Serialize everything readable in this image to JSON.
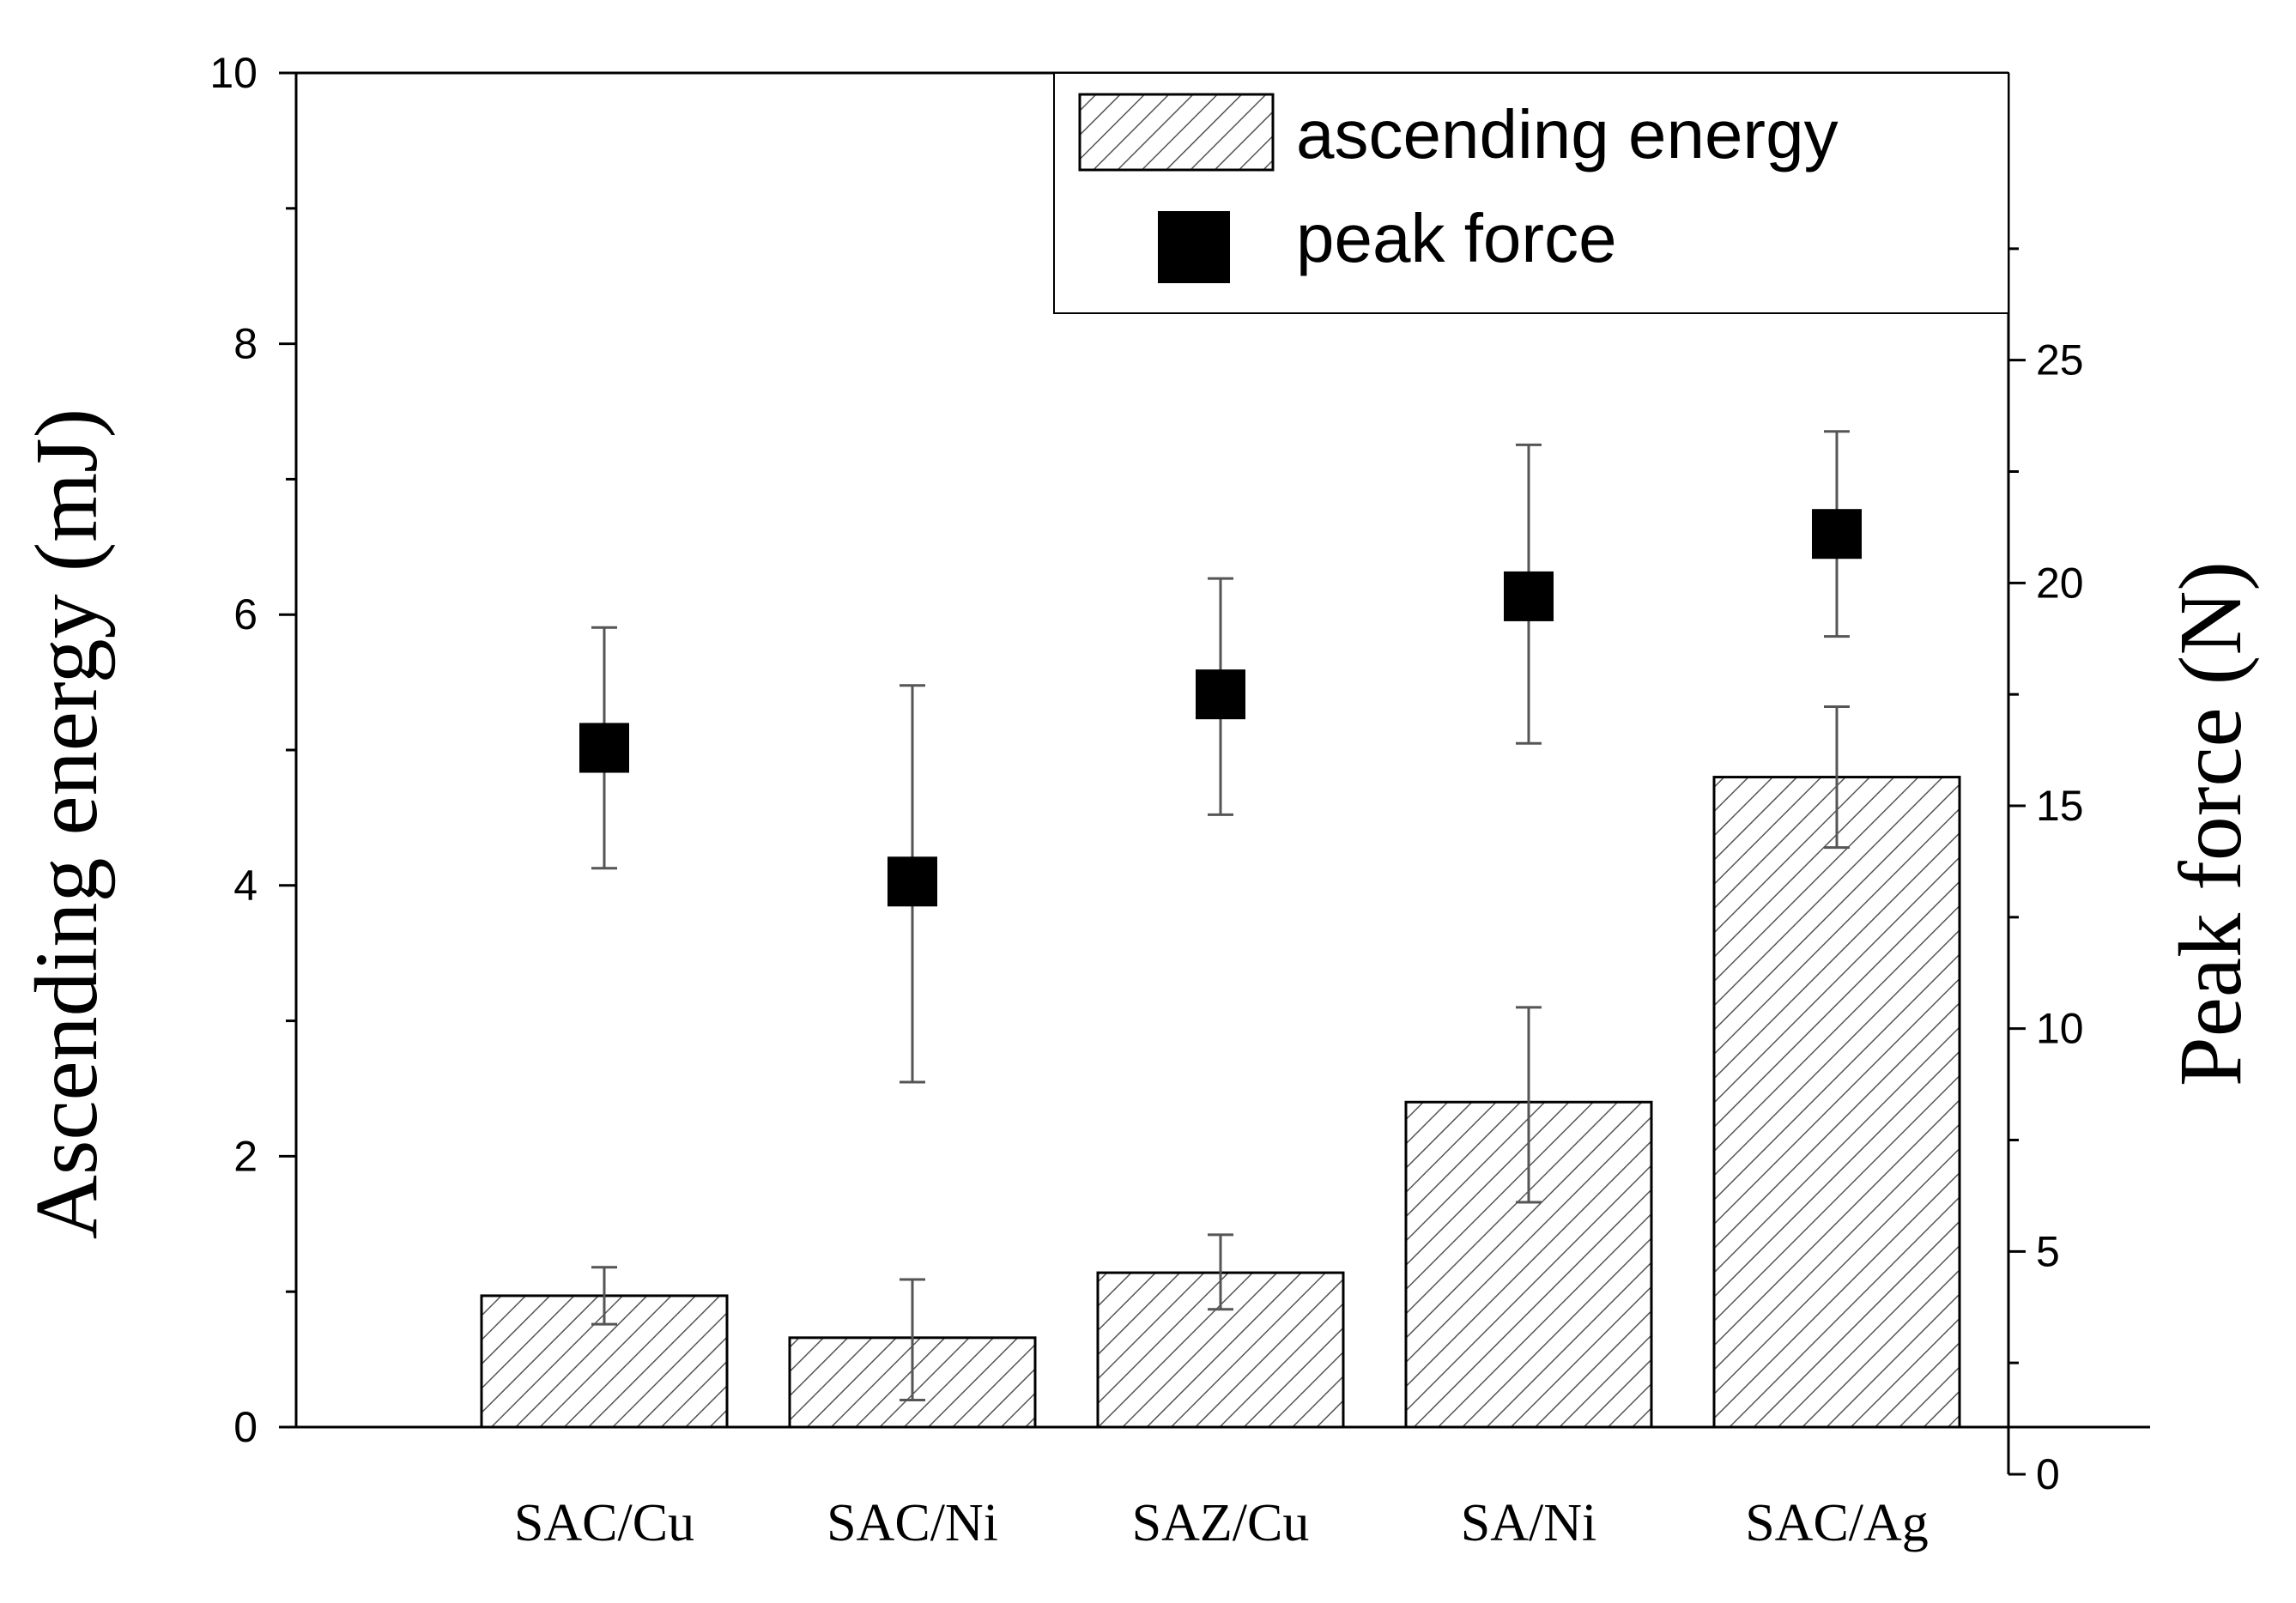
{
  "chart_data": {
    "type": "bar",
    "categories": [
      "SAC/Cu",
      "SAC/Ni",
      "SAZ/Cu",
      "SA/Ni",
      "SAC/Ag"
    ],
    "ylabel": "Ascending energy (mJ)",
    "y2label": "Peak force (N)",
    "ylim": [
      0,
      10
    ],
    "y2lim": [
      0,
      30
    ],
    "yticks": [
      "0",
      "2",
      "4",
      "6",
      "8",
      "10"
    ],
    "y2ticks": [
      "0",
      "5",
      "10",
      "15",
      "20",
      "25"
    ],
    "legend_position": "top-right",
    "grid": false,
    "series": [
      {
        "name": "ascending energy",
        "kind": "bar",
        "axis": "left",
        "pattern": "hatched",
        "values": [
          0.97,
          0.66,
          1.14,
          2.4,
          4.8
        ],
        "err_low": [
          0.76,
          0.2,
          0.87,
          1.66,
          4.28
        ],
        "err_high": [
          1.18,
          1.09,
          1.42,
          3.1,
          5.32
        ]
      },
      {
        "name": "peak force",
        "kind": "scatter",
        "axis": "right",
        "marker": "square",
        "values": [
          16.3,
          13.3,
          17.5,
          19.7,
          21.1
        ],
        "err_low": [
          13.6,
          8.8,
          14.8,
          16.4,
          18.8
        ],
        "err_high": [
          19.0,
          17.7,
          20.1,
          23.1,
          23.4
        ]
      }
    ]
  }
}
